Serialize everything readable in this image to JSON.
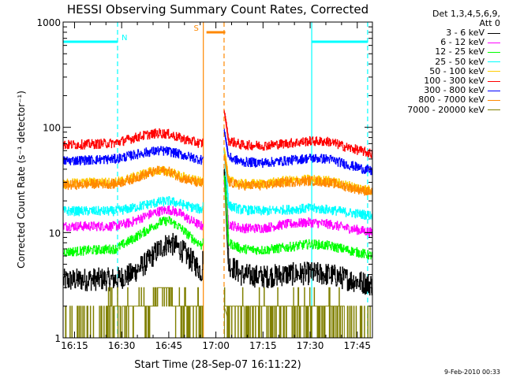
{
  "chart_data": {
    "type": "line",
    "title": "HESSI Observing Summary Count Rates, Corrected",
    "xlabel": "Start Time (28-Sep-07 16:11:22)",
    "ylabel": "Corrected Count Rate (s⁻¹ detector⁻¹)",
    "yscale": "log",
    "ylim": [
      1,
      1000
    ],
    "xlim": [
      "16:11:22",
      "17:49:50"
    ],
    "x_tick_labels": [
      "16:15",
      "16:30",
      "16:45",
      "17:00",
      "17:15",
      "17:30",
      "17:45"
    ],
    "x_tick_minutes": [
      15,
      30,
      45,
      60,
      75,
      90,
      105
    ],
    "y_tick_labels": [
      "1",
      "10",
      "100",
      "1000"
    ],
    "y_tick_values": [
      1,
      10,
      100,
      1000
    ],
    "legend_header": [
      "Det 1,3,4,5,6,9,",
      "Att 0"
    ],
    "legend_position": "right, outside plot",
    "x_range_minutes": [
      11.37,
      109.83
    ],
    "data_gap_minutes": [
      56.0,
      62.6
    ],
    "series": [
      {
        "name": "3 - 6 keV",
        "color": "#000000",
        "x": [
          11.4,
          20,
          28,
          33,
          38,
          42,
          45,
          48,
          52,
          55.5,
          62.6,
          64,
          68,
          75,
          82,
          90,
          96,
          102,
          109.8
        ],
        "values": [
          3.5,
          3.6,
          3.6,
          4.0,
          5.2,
          7.0,
          8.0,
          7.2,
          5.5,
          4.2,
          40,
          5.0,
          4.0,
          3.8,
          4.0,
          4.1,
          4.0,
          3.6,
          3.2
        ]
      },
      {
        "name": "6 - 12 keV",
        "color": "#ff00ff",
        "x": [
          11.4,
          20,
          28,
          33,
          38,
          42,
          45,
          48,
          52,
          55.5,
          62.6,
          64,
          68,
          75,
          82,
          90,
          96,
          102,
          109.8
        ],
        "values": [
          11.5,
          11.5,
          11.5,
          12.5,
          14.5,
          16,
          16.5,
          15.5,
          13,
          11.5,
          30,
          12,
          11,
          11,
          12,
          12.5,
          12,
          11,
          10
        ]
      },
      {
        "name": "12 - 25 keV",
        "color": "#00ff00",
        "x": [
          11.4,
          20,
          28,
          33,
          38,
          42,
          45,
          48,
          52,
          55.5,
          62.6,
          64,
          68,
          75,
          82,
          90,
          96,
          102,
          109.8
        ],
        "values": [
          6.5,
          6.8,
          7.0,
          8.5,
          10.5,
          12.5,
          13,
          11.5,
          9,
          7.5,
          35,
          8,
          7,
          6.8,
          7.2,
          7.8,
          7.5,
          6.8,
          6.0
        ]
      },
      {
        "name": "25 - 50 keV",
        "color": "#00ffff",
        "x": [
          11.4,
          20,
          28,
          33,
          38,
          42,
          45,
          48,
          52,
          55.5,
          62.6,
          64,
          68,
          75,
          82,
          90,
          96,
          102,
          109.8
        ],
        "values": [
          16,
          16,
          16,
          17,
          18.5,
          19.5,
          20,
          19,
          17.5,
          16.5,
          60,
          18,
          16.5,
          16,
          16.5,
          17,
          16.5,
          15.5,
          14.5
        ]
      },
      {
        "name": "50 - 100 keV",
        "color": "#ffcc00",
        "x": [
          11.4,
          20,
          28,
          33,
          38,
          42,
          45,
          48,
          52,
          55.5,
          62.6,
          64,
          68,
          75,
          82,
          90,
          96,
          102,
          109.8
        ],
        "values": [
          29,
          30,
          30,
          33,
          37,
          39,
          38,
          35,
          32,
          30,
          65,
          31,
          29,
          29,
          31,
          32,
          31,
          28,
          25
        ]
      },
      {
        "name": "100 - 300 keV",
        "color": "#ff0000",
        "x": [
          11.4,
          20,
          28,
          33,
          38,
          42,
          45,
          48,
          52,
          55.5,
          62.6,
          64,
          68,
          75,
          82,
          90,
          96,
          102,
          109.8
        ],
        "values": [
          68,
          69,
          71,
          78,
          85,
          88,
          86,
          80,
          74,
          70,
          145,
          75,
          68,
          67,
          70,
          74,
          73,
          64,
          56
        ]
      },
      {
        "name": "300 - 800 keV",
        "color": "#0000ff",
        "x": [
          11.4,
          20,
          28,
          33,
          38,
          42,
          45,
          48,
          52,
          55.5,
          62.6,
          64,
          68,
          75,
          82,
          90,
          96,
          102,
          109.8
        ],
        "values": [
          48,
          49,
          50,
          54,
          58,
          60,
          59,
          56,
          52,
          49,
          95,
          52,
          47,
          46,
          48,
          51,
          50,
          44,
          38
        ]
      },
      {
        "name": "800 - 7000 keV",
        "color": "#ff8800",
        "x": [
          11.4,
          20,
          28,
          33,
          38,
          42,
          45,
          48,
          52,
          55.5,
          62.6,
          64,
          68,
          75,
          82,
          90,
          96,
          102,
          109.8
        ],
        "values": [
          28,
          29,
          29,
          32,
          36,
          39,
          38,
          34,
          31,
          29,
          55,
          30,
          28,
          28,
          30,
          31,
          30,
          27,
          24
        ]
      },
      {
        "name": "7000 - 20000 keV",
        "color": "#808000",
        "x": [
          11.4,
          25,
          28.5,
          33,
          38,
          42,
          45,
          48,
          52,
          55.5,
          62.6,
          64,
          68,
          75,
          82,
          90,
          96,
          102,
          109.8
        ],
        "values": [
          1,
          1,
          2,
          2,
          2,
          3,
          3,
          2,
          2,
          2,
          2,
          1.5,
          2,
          2,
          2,
          2,
          2,
          1,
          1
        ]
      }
    ],
    "flags": [
      {
        "label": "N",
        "color": "#00ffff",
        "level": 650,
        "segments": [
          [
            11.4,
            28.7
          ],
          [
            90.5,
            108.3
          ]
        ]
      },
      {
        "label": "S",
        "color": "#ff8800",
        "level": 800,
        "segments": [
          [
            57.0,
            63.0
          ]
        ]
      }
    ],
    "vertical_markers": [
      {
        "color": "#00ffff",
        "minutes": [
          28.7,
          108.3
        ],
        "style": "dashed"
      },
      {
        "color": "#00ffff",
        "minutes": [
          90.5
        ],
        "style": "solid"
      },
      {
        "color": "#ff8800",
        "minutes": [
          62.6
        ],
        "style": "dashed"
      },
      {
        "color": "#ff8800",
        "minutes": [
          56.0
        ],
        "style": "solid"
      }
    ],
    "footer": "9-Feb-2010 00:33"
  }
}
